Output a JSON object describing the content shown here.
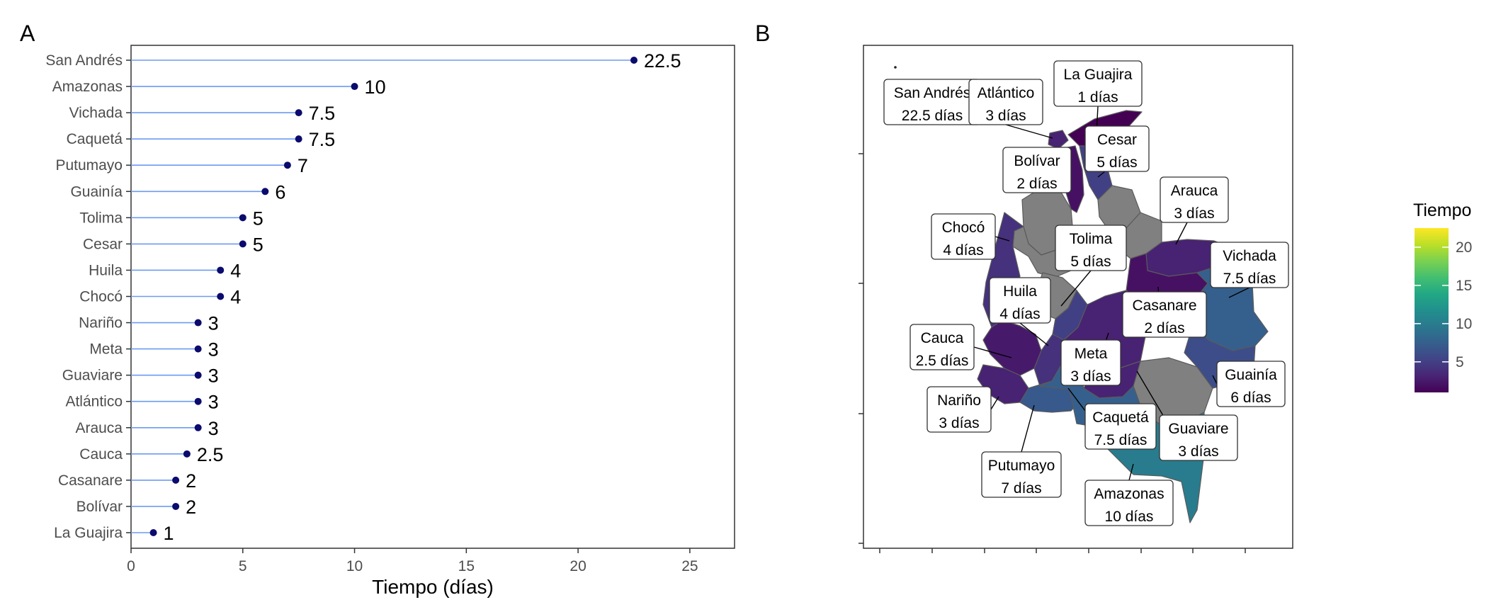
{
  "chart_data": [
    {
      "panel": "A",
      "type": "lollipop",
      "categories": [
        "San Andrés",
        "Amazonas",
        "Vichada",
        "Caquetá",
        "Putumayo",
        "Guainía",
        "Tolima",
        "Cesar",
        "Huila",
        "Chocó",
        "Nariño",
        "Meta",
        "Guaviare",
        "Atlántico",
        "Arauca",
        "Cauca",
        "Casanare",
        "Bolívar",
        "La Guajira"
      ],
      "values": [
        22.5,
        10,
        7.5,
        7.5,
        7,
        6,
        5,
        5,
        4,
        4,
        3,
        3,
        3,
        3,
        3,
        2.5,
        2,
        2,
        1
      ],
      "value_labels": [
        "22.5",
        "10",
        "7.5",
        "7.5",
        "7",
        "6",
        "5",
        "5",
        "4",
        "4",
        "3",
        "3",
        "3",
        "3",
        "3",
        "2.5",
        "2",
        "2",
        "1"
      ],
      "xlabel": "Tiempo (días)",
      "xlim": [
        0,
        27
      ],
      "xticks": [
        "0",
        "5",
        "10",
        "15",
        "20",
        "25"
      ],
      "colors": {
        "line": "#6c9bf2",
        "point": "#0b0b6e"
      }
    },
    {
      "panel": "B",
      "type": "choropleth",
      "legend_title": "Tiempo",
      "legend_ticks": [
        "5",
        "10",
        "15",
        "20"
      ],
      "color_scale": "viridis",
      "color_range": [
        1,
        22.5
      ],
      "no_data_color": "#808080",
      "regions": [
        {
          "name": "San Andrés",
          "label": "22.5 días",
          "value": 22.5
        },
        {
          "name": "Atlántico",
          "label": "3 días",
          "value": 3
        },
        {
          "name": "La Guajira",
          "label": "1 días",
          "value": 1
        },
        {
          "name": "Cesar",
          "label": "5 días",
          "value": 5
        },
        {
          "name": "Bolívar",
          "label": "2 días",
          "value": 2
        },
        {
          "name": "Arauca",
          "label": "3 días",
          "value": 3
        },
        {
          "name": "Chocó",
          "label": "4 días",
          "value": 4
        },
        {
          "name": "Tolima",
          "label": "5 días",
          "value": 5
        },
        {
          "name": "Vichada",
          "label": "7.5 días",
          "value": 7.5
        },
        {
          "name": "Huila",
          "label": "4 días",
          "value": 4
        },
        {
          "name": "Casanare",
          "label": "2 días",
          "value": 2
        },
        {
          "name": "Cauca",
          "label": "2.5 días",
          "value": 2.5
        },
        {
          "name": "Meta",
          "label": "3 días",
          "value": 3
        },
        {
          "name": "Guainía",
          "label": "6 días",
          "value": 6
        },
        {
          "name": "Nariño",
          "label": "3 días",
          "value": 3
        },
        {
          "name": "Caquetá",
          "label": "7.5 días",
          "value": 7.5
        },
        {
          "name": "Guaviare",
          "label": "3 días",
          "value": 3
        },
        {
          "name": "Putumayo",
          "label": "7 días",
          "value": 7
        },
        {
          "name": "Amazonas",
          "label": "10 días",
          "value": 10
        }
      ]
    }
  ],
  "panel_labels": {
    "a": "A",
    "b": "B"
  }
}
